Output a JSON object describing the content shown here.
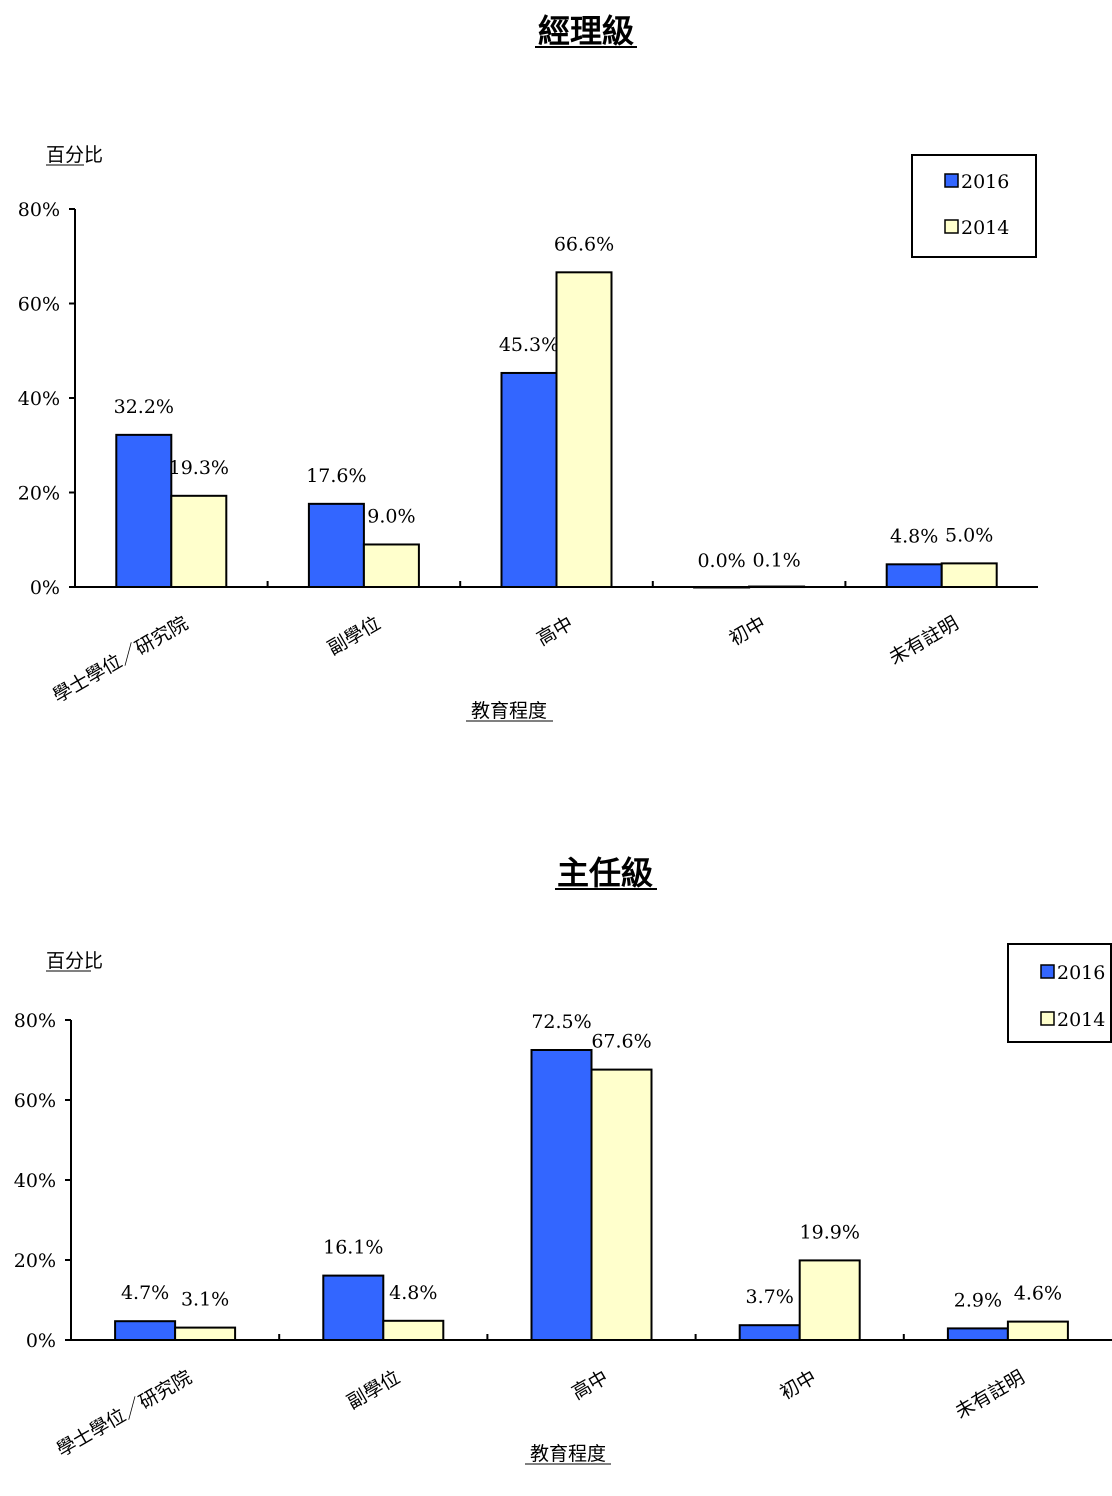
{
  "chart_data": [
    {
      "type": "bar",
      "title": "經理級",
      "ylabel": "百分比",
      "xlabel": "教育程度",
      "categories": [
        "學士學位／研究院",
        "副學位",
        "高中",
        "初中",
        "未有註明"
      ],
      "series": [
        {
          "name": "2016",
          "values": [
            32.2,
            17.6,
            45.3,
            0.0,
            4.8
          ],
          "labels": [
            "32.2%",
            "17.6%",
            "45.3%",
            "0.0%",
            "4.8%"
          ],
          "color": "#3366FF"
        },
        {
          "name": "2014",
          "values": [
            19.3,
            9.0,
            66.6,
            0.1,
            5.0
          ],
          "labels": [
            "19.3%",
            "9.0%",
            "66.6%",
            "0.1%",
            "5.0%"
          ],
          "color": "#FFFFCC"
        }
      ],
      "yticks": [
        "0%",
        "20%",
        "40%",
        "60%",
        "80%"
      ],
      "ylim": [
        0,
        80
      ],
      "legend": "top-right",
      "grid": false
    },
    {
      "type": "bar",
      "title": "主任級",
      "ylabel": "百分比",
      "xlabel": "教育程度",
      "categories": [
        "學士學位／研究院",
        "副學位",
        "高中",
        "初中",
        "未有註明"
      ],
      "series": [
        {
          "name": "2016",
          "values": [
            4.7,
            16.1,
            72.5,
            3.7,
            2.9
          ],
          "labels": [
            "4.7%",
            "16.1%",
            "72.5%",
            "3.7%",
            "2.9%"
          ],
          "color": "#3366FF"
        },
        {
          "name": "2014",
          "values": [
            3.1,
            4.8,
            67.6,
            19.9,
            4.6
          ],
          "labels": [
            "3.1%",
            "4.8%",
            "67.6%",
            "19.9%",
            "4.6%"
          ],
          "color": "#FFFFCC"
        }
      ],
      "yticks": [
        "0%",
        "20%",
        "40%",
        "60%",
        "80%"
      ],
      "ylim": [
        0,
        80
      ],
      "legend": "top-right",
      "grid": false
    }
  ]
}
